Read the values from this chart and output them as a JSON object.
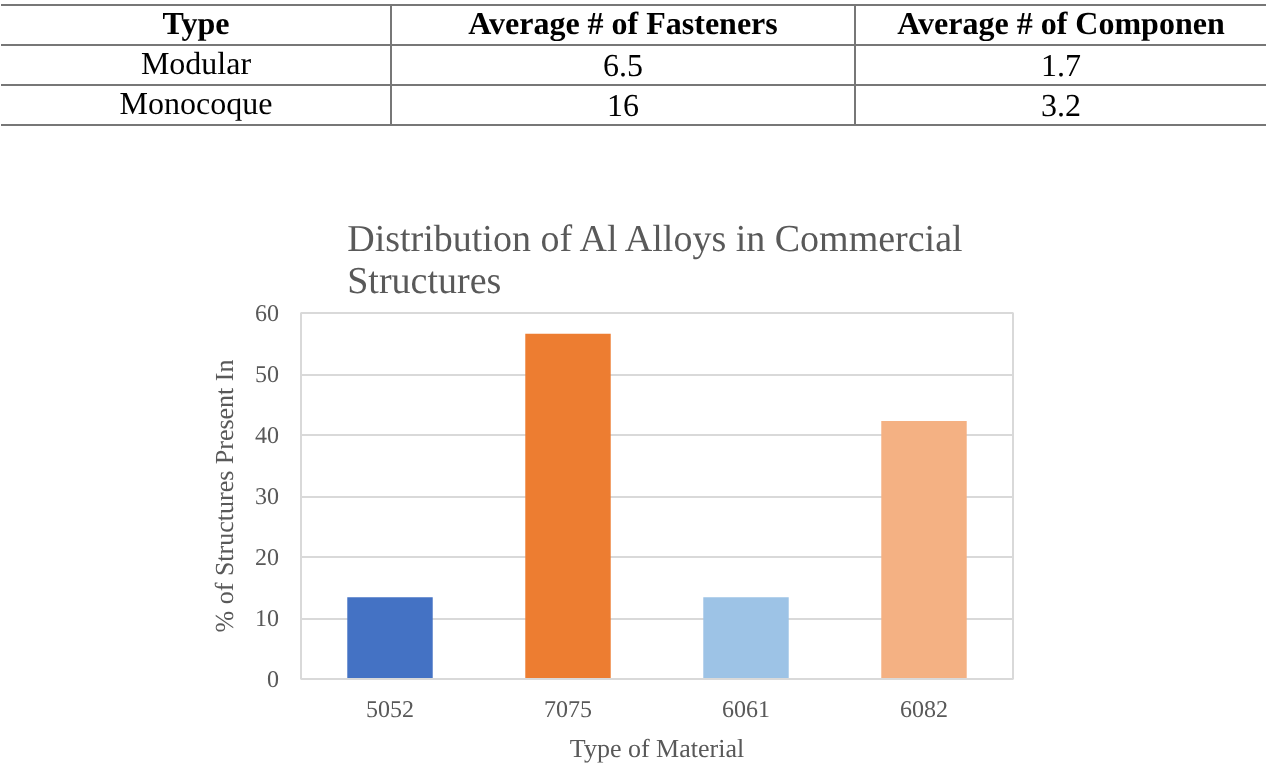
{
  "chart_data": [
    {
      "type": "other",
      "ylabel": "Type",
      "categories": [
        "Average # of Fasteners",
        "Average # of Componen"
      ],
      "y_categories": [
        "Modular",
        "Monocoque"
      ],
      "cell_labels": [
        [
          "6.5",
          "1.7"
        ],
        [
          "16",
          "3.2"
        ]
      ],
      "data_labels": true
    },
    {
      "type": "bar",
      "title": "Distribution of Al Alloys in Commercial Structures",
      "xlabel": "Type of Material",
      "ylabel": "% of Structures Present In",
      "categories": [
        "5052",
        "7075",
        "6061",
        "6082"
      ],
      "values": [
        13.4,
        56.6,
        13.4,
        42.3
      ],
      "colors": [
        "#4472c4",
        "#ed7d31",
        "#9dc3e6",
        "#f4b183"
      ],
      "ylim": [
        0,
        60
      ],
      "yticks": [
        0,
        10,
        20,
        30,
        40,
        50,
        60
      ],
      "grid": "y"
    }
  ]
}
